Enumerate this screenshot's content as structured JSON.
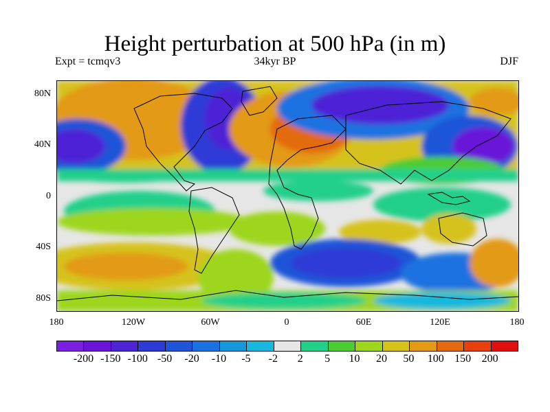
{
  "title": "Height perturbation at 500 hPa (in m)",
  "subtitle_left": "Expt = tcmqv3",
  "subtitle_center": "34kyr BP",
  "subtitle_right": "DJF",
  "y_ticks": [
    "80N",
    "40N",
    "0",
    "40S",
    "80S"
  ],
  "x_ticks": [
    "180",
    "120W",
    "60W",
    "0",
    "60E",
    "120E",
    "180"
  ],
  "colorbar": {
    "labels": [
      "-200",
      "-150",
      "-100",
      "-50",
      "-20",
      "-10",
      "-5",
      "-2",
      "2",
      "5",
      "10",
      "20",
      "50",
      "100",
      "150",
      "200"
    ],
    "colors": [
      "#7a1fe0",
      "#6a14d8",
      "#4d24d6",
      "#2f3bd6",
      "#1f55d8",
      "#1a72e0",
      "#1697dc",
      "#18b8de",
      "#e6e6e6",
      "#22d08a",
      "#4ccc33",
      "#9dd61a",
      "#d6c21a",
      "#e39a14",
      "#e36a10",
      "#e8400c",
      "#e01010"
    ]
  }
}
